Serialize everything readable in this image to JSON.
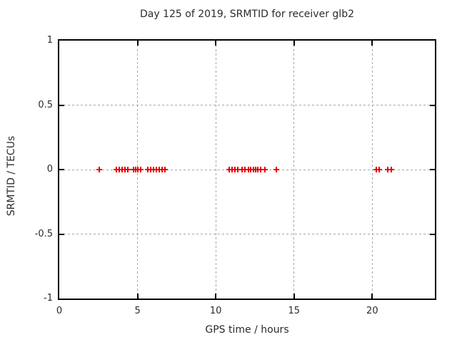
{
  "chart_data": {
    "type": "scatter",
    "title": "Day 125 of 2019, SRMTID for receiver glb2",
    "xlabel": "GPS time / hours",
    "ylabel": "SRMTID / TECUs",
    "xlim": [
      0,
      24
    ],
    "ylim": [
      -1,
      1
    ],
    "x_ticks": [
      0,
      5,
      10,
      15,
      20
    ],
    "y_ticks": [
      1,
      0.5,
      0,
      -0.5,
      -1
    ],
    "grid": true,
    "legend_position": "none",
    "marker": {
      "symbol": "plus",
      "color": "#e80000"
    },
    "series": [
      {
        "name": "SRMTID",
        "x": [
          2.56,
          3.65,
          3.83,
          4.01,
          4.2,
          4.38,
          4.74,
          4.88,
          5.02,
          5.2,
          5.66,
          5.84,
          6.02,
          6.2,
          6.39,
          6.57,
          6.75,
          10.87,
          11.05,
          11.24,
          11.42,
          11.66,
          11.85,
          12.09,
          12.24,
          12.39,
          12.54,
          12.7,
          12.88,
          13.12,
          13.88,
          20.26,
          20.42,
          20.97,
          21.21
        ],
        "y": [
          0,
          0,
          0,
          0,
          0,
          0,
          0,
          0,
          0,
          0,
          0,
          0,
          0,
          0,
          0,
          0,
          0,
          0,
          0,
          0,
          0,
          0,
          0,
          0,
          0,
          0,
          0,
          0,
          0,
          0,
          0,
          0,
          0,
          0,
          0
        ]
      }
    ]
  },
  "colors": {
    "background": "#ffffff",
    "border": "#000000",
    "grid": "#a6a6a6",
    "text": "#2b2b2b",
    "marker": "#e80000"
  }
}
